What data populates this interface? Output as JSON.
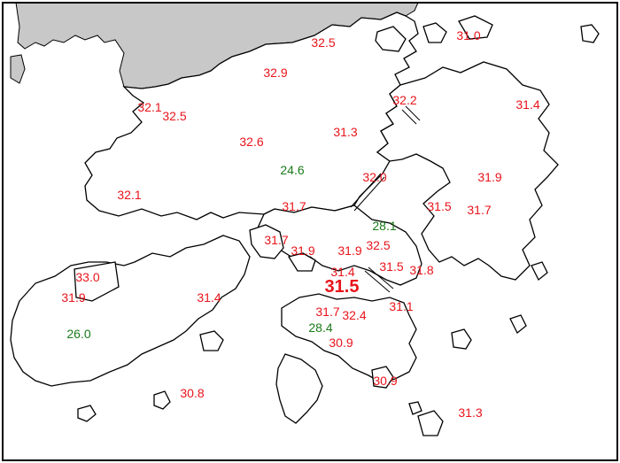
{
  "colors": {
    "high_temp": "#e8141b",
    "low_temp": "#1a7a1a",
    "land_outline": "#000000",
    "mainland_fill": "#c8c8c8",
    "background": "#ffffff"
  },
  "readings": [
    {
      "id": "r01",
      "value": "31.0",
      "category": "high"
    },
    {
      "id": "r02",
      "value": "32.5",
      "category": "high"
    },
    {
      "id": "r03",
      "value": "32.9",
      "category": "high"
    },
    {
      "id": "r04",
      "value": "32.1",
      "category": "high"
    },
    {
      "id": "r05",
      "value": "32.5",
      "category": "high"
    },
    {
      "id": "r06",
      "value": "32.2",
      "category": "high"
    },
    {
      "id": "r07",
      "value": "31.4",
      "category": "high"
    },
    {
      "id": "r08",
      "value": "31.3",
      "category": "high"
    },
    {
      "id": "r09",
      "value": "32.6",
      "category": "high"
    },
    {
      "id": "r10",
      "value": "24.6",
      "category": "low"
    },
    {
      "id": "r11",
      "value": "32.0",
      "category": "high"
    },
    {
      "id": "r12",
      "value": "31.9",
      "category": "high"
    },
    {
      "id": "r13",
      "value": "32.1",
      "category": "high"
    },
    {
      "id": "r14",
      "value": "31.7",
      "category": "high"
    },
    {
      "id": "r15",
      "value": "28.1",
      "category": "low"
    },
    {
      "id": "r16",
      "value": "31.5",
      "category": "high"
    },
    {
      "id": "r17",
      "value": "31.7",
      "category": "high"
    },
    {
      "id": "r18",
      "value": "31.7",
      "category": "high"
    },
    {
      "id": "r19",
      "value": "31.9",
      "category": "high"
    },
    {
      "id": "r20",
      "value": "31.9",
      "category": "high"
    },
    {
      "id": "r21",
      "value": "32.5",
      "category": "high"
    },
    {
      "id": "r22",
      "value": "33.0",
      "category": "high"
    },
    {
      "id": "r23",
      "value": "31.4",
      "category": "high"
    },
    {
      "id": "r24",
      "value": "31.5",
      "category": "high"
    },
    {
      "id": "r25",
      "value": "31.8",
      "category": "high"
    },
    {
      "id": "r26",
      "value": "31.5",
      "category": "high",
      "emphasis": true
    },
    {
      "id": "r27",
      "value": "31.9",
      "category": "high"
    },
    {
      "id": "r28",
      "value": "31.4",
      "category": "high"
    },
    {
      "id": "r29",
      "value": "31.1",
      "category": "high"
    },
    {
      "id": "r30",
      "value": "31.7",
      "category": "high"
    },
    {
      "id": "r31",
      "value": "32.4",
      "category": "high"
    },
    {
      "id": "r32",
      "value": "26.0",
      "category": "low"
    },
    {
      "id": "r33",
      "value": "28.4",
      "category": "low"
    },
    {
      "id": "r34",
      "value": "30.9",
      "category": "high"
    },
    {
      "id": "r35",
      "value": "30.9",
      "category": "high"
    },
    {
      "id": "r36",
      "value": "30.8",
      "category": "high"
    },
    {
      "id": "r37",
      "value": "31.3",
      "category": "high"
    }
  ]
}
